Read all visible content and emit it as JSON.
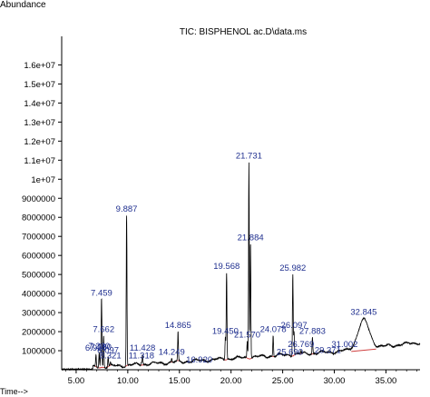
{
  "chart_data": {
    "type": "line",
    "title": "TIC: BISPHENOL  ac.D\\data.ms",
    "ylabel": "Abundance",
    "xlabel": "Time-->",
    "xlim": [
      3.6,
      38.3
    ],
    "ylim": [
      0,
      17500000
    ],
    "xticks": [
      5.0,
      10.0,
      15.0,
      20.0,
      25.0,
      30.0,
      35.0
    ],
    "xtick_labels": [
      "5.00",
      "10.00",
      "15.00",
      "20.00",
      "25.00",
      "30.00",
      "35.00"
    ],
    "yticks": [
      1000000,
      2000000,
      3000000,
      4000000,
      5000000,
      6000000,
      7000000,
      8000000,
      9000000,
      10000000,
      11000000,
      12000000,
      13000000,
      14000000,
      15000000,
      16000000
    ],
    "ytick_labels": [
      "1000000",
      "2000000",
      "3000000",
      "4000000",
      "5000000",
      "6000000",
      "7000000",
      "8000000",
      "9000000",
      "1e+07",
      "1.1e+07",
      "1.2e+07",
      "1.3e+07",
      "1.4e+07",
      "1.5e+07",
      "1.6e+07"
    ],
    "colors": {
      "trace": "#000000",
      "baseline": "#d04040",
      "label": "#1f2f8f",
      "axis": "#000000"
    },
    "peaks": [
      {
        "label": "6.920",
        "x": 6.92,
        "y": 800000
      },
      {
        "label": "7.230",
        "x": 7.23,
        "y": 900000
      },
      {
        "label": "7.380",
        "x": 7.38,
        "y": 850000
      },
      {
        "label": "7.459",
        "x": 7.459,
        "y": 3700000
      },
      {
        "label": "7.662",
        "x": 7.662,
        "y": 1800000
      },
      {
        "label": "8.097",
        "x": 8.097,
        "y": 700000
      },
      {
        "label": "8.321",
        "x": 8.321,
        "y": 400000
      },
      {
        "label": "9.887",
        "x": 9.887,
        "y": 8100000
      },
      {
        "label": "11.428",
        "x": 11.428,
        "y": 800000
      },
      {
        "label": "11.318",
        "x": 11.318,
        "y": 400000
      },
      {
        "label": "14.249",
        "x": 14.249,
        "y": 600000
      },
      {
        "label": "14.865",
        "x": 14.865,
        "y": 2000000
      },
      {
        "label": "16.920",
        "x": 16.92,
        "y": 200000
      },
      {
        "label": "19.450",
        "x": 19.45,
        "y": 1700000
      },
      {
        "label": "19.568",
        "x": 19.568,
        "y": 5100000
      },
      {
        "label": "21.570",
        "x": 21.57,
        "y": 1500000
      },
      {
        "label": "21.731",
        "x": 21.731,
        "y": 10900000
      },
      {
        "label": "21.884",
        "x": 21.884,
        "y": 6600000
      },
      {
        "label": "24.078",
        "x": 24.078,
        "y": 1800000
      },
      {
        "label": "25.690",
        "x": 25.69,
        "y": 600000
      },
      {
        "label": "25.982",
        "x": 25.982,
        "y": 5000000
      },
      {
        "label": "26.097",
        "x": 26.097,
        "y": 2000000
      },
      {
        "label": "26.769",
        "x": 26.769,
        "y": 1000000
      },
      {
        "label": "27.883",
        "x": 27.883,
        "y": 1700000
      },
      {
        "label": "29.371",
        "x": 29.371,
        "y": 700000
      },
      {
        "label": "31.002",
        "x": 31.002,
        "y": 1000000
      },
      {
        "label": "32.845",
        "x": 32.845,
        "y": 2700000
      }
    ]
  }
}
